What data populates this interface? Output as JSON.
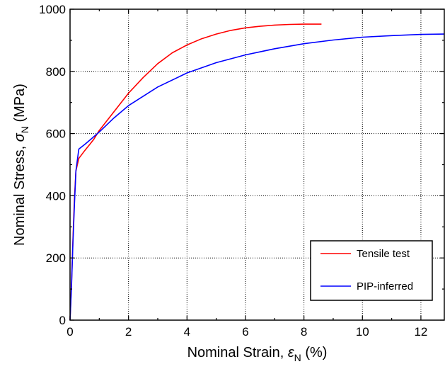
{
  "chart_data": {
    "type": "line",
    "xlabel_main": "Nominal Strain, ",
    "xlabel_symbol": "ε",
    "xlabel_sub": "N",
    "xlabel_unit": " (%)",
    "ylabel_main": "Nominal Stress, ",
    "ylabel_symbol": "σ",
    "ylabel_sub": "N",
    "ylabel_unit": " (MPa)",
    "xlim": [
      0,
      12.8
    ],
    "ylim": [
      0,
      1000
    ],
    "x_ticks": [
      0,
      2,
      4,
      6,
      8,
      10,
      12
    ],
    "x_tick_labels": [
      "0",
      "2",
      "4",
      "6",
      "8",
      "10",
      "12"
    ],
    "y_ticks": [
      0,
      200,
      400,
      600,
      800,
      1000
    ],
    "y_tick_labels": [
      "0",
      "200",
      "400",
      "600",
      "800",
      "1000"
    ],
    "x_minor_step": 1,
    "y_minor_step": 100,
    "grid": true,
    "legend_position": "bottom-right",
    "series": [
      {
        "name": "Tensile test",
        "color": "#ff0000",
        "x": [
          0,
          0.05,
          0.1,
          0.15,
          0.2,
          0.3,
          0.5,
          0.8,
          1.0,
          1.5,
          2.0,
          2.5,
          3.0,
          3.5,
          4.0,
          4.5,
          5.0,
          5.5,
          6.0,
          6.5,
          7.0,
          7.5,
          8.0,
          8.6
        ],
        "y": [
          0,
          120,
          260,
          390,
          480,
          520,
          545,
          580,
          610,
          670,
          730,
          780,
          825,
          860,
          885,
          905,
          920,
          932,
          940,
          945,
          949,
          951,
          952,
          952
        ]
      },
      {
        "name": "PIP-inferred",
        "color": "#0000ff",
        "x": [
          0,
          0.05,
          0.1,
          0.15,
          0.2,
          0.3,
          0.5,
          1.0,
          1.5,
          2.0,
          3.0,
          4.0,
          5.0,
          6.0,
          7.0,
          8.0,
          9.0,
          10.0,
          11.0,
          12.0,
          12.8
        ],
        "y": [
          0,
          110,
          250,
          370,
          480,
          550,
          565,
          605,
          650,
          690,
          750,
          795,
          828,
          853,
          873,
          889,
          901,
          910,
          915,
          919,
          920
        ]
      }
    ]
  }
}
